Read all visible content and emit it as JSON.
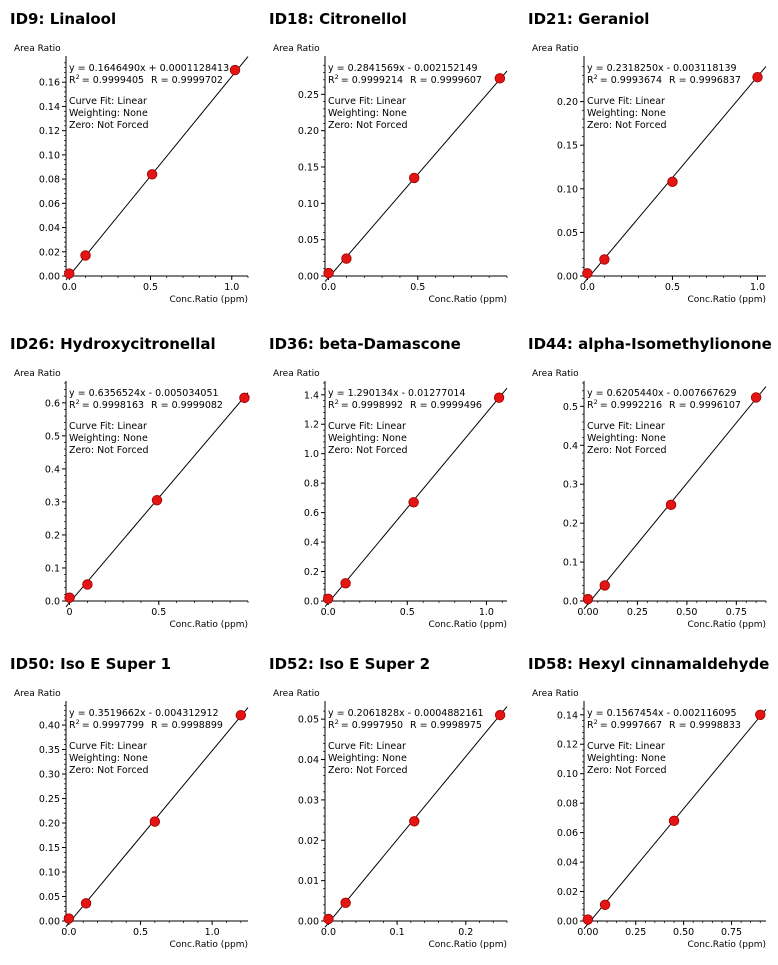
{
  "chart_data": [
    {
      "type": "scatter",
      "title": "ID9: Linalool",
      "ylabel": "Area Ratio",
      "xlabel": "Conc.Ratio (ppm)",
      "x_ticks": [
        "0.0",
        "0.5",
        "1.0"
      ],
      "y_ticks": [
        "0.00",
        "0.02",
        "0.04",
        "0.06",
        "0.08",
        "0.10",
        "0.12",
        "0.14",
        "0.16"
      ],
      "xlim": [
        -0.02,
        1.1
      ],
      "ylim": [
        0.0,
        0.18
      ],
      "equation": "y = 0.1646490x + 0.0001128413",
      "r2": "= 0.9999405",
      "r": "R = 0.9999702",
      "slope": 0.164649,
      "intercept": 0.0001128413,
      "fit_x": [
        -0.02,
        1.1
      ],
      "info": [
        "Curve Fit: Linear",
        "Weighting: None",
        "Zero: Not Forced"
      ],
      "points": [
        {
          "x": 0.0,
          "y": 0.002
        },
        {
          "x": 0.1,
          "y": 0.017
        },
        {
          "x": 0.51,
          "y": 0.084
        },
        {
          "x": 1.02,
          "y": 0.17
        }
      ]
    },
    {
      "type": "scatter",
      "title": "ID18: Citronellol",
      "ylabel": "Area Ratio",
      "xlabel": "Conc.Ratio (ppm)",
      "x_ticks": [
        "0.0",
        "0.5"
      ],
      "y_ticks": [
        "0.00",
        "0.05",
        "0.10",
        "0.15",
        "0.20",
        "0.25"
      ],
      "xlim": [
        -0.02,
        1.0
      ],
      "ylim": [
        0.0,
        0.3
      ],
      "equation": "y = 0.2841569x - 0.002152149",
      "r2": "= 0.9999214",
      "r": "R = 0.9999607",
      "slope": 0.2841569,
      "intercept": -0.002152149,
      "fit_x": [
        -0.02,
        1.0
      ],
      "info": [
        "Curve Fit: Linear",
        "Weighting: None",
        "Zero: Not Forced"
      ],
      "points": [
        {
          "x": 0.0,
          "y": 0.004
        },
        {
          "x": 0.1,
          "y": 0.024
        },
        {
          "x": 0.48,
          "y": 0.135
        },
        {
          "x": 0.96,
          "y": 0.272
        }
      ]
    },
    {
      "type": "scatter",
      "title": "ID21: Geraniol",
      "ylabel": "Area Ratio",
      "xlabel": "Conc.Ratio (ppm)",
      "x_ticks": [
        "0.0",
        "0.5",
        "1.0"
      ],
      "y_ticks": [
        "0.00",
        "0.05",
        "0.10",
        "0.15",
        "0.20"
      ],
      "xlim": [
        -0.02,
        1.05
      ],
      "ylim": [
        0.0,
        0.25
      ],
      "equation": "y = 0.2318250x - 0.003118139",
      "r2": "= 0.9993674",
      "r": "R = 0.9996837",
      "slope": 0.231825,
      "intercept": -0.003118139,
      "fit_x": [
        -0.02,
        1.05
      ],
      "info": [
        "Curve Fit: Linear",
        "Weighting: None",
        "Zero: Not Forced"
      ],
      "points": [
        {
          "x": 0.0,
          "y": 0.003
        },
        {
          "x": 0.1,
          "y": 0.019
        },
        {
          "x": 0.5,
          "y": 0.108
        },
        {
          "x": 1.0,
          "y": 0.228
        }
      ]
    },
    {
      "type": "scatter",
      "title": "ID26: Hydroxycitronellal",
      "ylabel": "Area Ratio",
      "xlabel": "Conc.Ratio (ppm)",
      "x_ticks": [
        "0",
        "0.5"
      ],
      "y_ticks": [
        "0.0",
        "0.1",
        "0.2",
        "0.3",
        "0.4",
        "0.5",
        "0.6"
      ],
      "xlim": [
        -0.02,
        1.0
      ],
      "ylim": [
        0.0,
        0.66
      ],
      "equation": "y = 0.6356524x - 0.005034051",
      "r2": "= 0.9998163",
      "r": "R = 0.9999082",
      "slope": 0.6356524,
      "intercept": -0.005034051,
      "fit_x": [
        -0.02,
        1.0
      ],
      "info": [
        "Curve Fit: Linear",
        "Weighting: None",
        "Zero: Not Forced"
      ],
      "points": [
        {
          "x": 0.0,
          "y": 0.01
        },
        {
          "x": 0.1,
          "y": 0.05
        },
        {
          "x": 0.49,
          "y": 0.305
        },
        {
          "x": 0.98,
          "y": 0.615
        }
      ]
    },
    {
      "type": "scatter",
      "title": "ID36: beta-Damascone",
      "ylabel": "Area Ratio",
      "xlabel": "Conc.Ratio (ppm)",
      "x_ticks": [
        "0.0",
        "0.5",
        "1.0"
      ],
      "y_ticks": [
        "0.0",
        "0.2",
        "0.4",
        "0.6",
        "0.8",
        "1.0",
        "1.2",
        "1.4"
      ],
      "xlim": [
        -0.02,
        1.13
      ],
      "ylim": [
        0.0,
        1.48
      ],
      "equation": "y = 1.290134x - 0.01277014",
      "r2": "= 0.9998992",
      "r": "R = 0.9999496",
      "slope": 1.290134,
      "intercept": -0.01277014,
      "fit_x": [
        -0.02,
        1.13
      ],
      "info": [
        "Curve Fit: Linear",
        "Weighting: None",
        "Zero: Not Forced"
      ],
      "points": [
        {
          "x": 0.0,
          "y": 0.015
        },
        {
          "x": 0.11,
          "y": 0.12
        },
        {
          "x": 0.54,
          "y": 0.67
        },
        {
          "x": 1.08,
          "y": 1.38
        }
      ]
    },
    {
      "type": "scatter",
      "title": "ID44: alpha-Isomethylionone",
      "ylabel": "Area Ratio",
      "xlabel": "Conc.Ratio (ppm)",
      "x_ticks": [
        "0.00",
        "0.25",
        "0.50",
        "0.75"
      ],
      "y_ticks": [
        "0.0",
        "0.1",
        "0.2",
        "0.3",
        "0.4",
        "0.5"
      ],
      "xlim": [
        -0.02,
        0.9
      ],
      "ylim": [
        0.0,
        0.56
      ],
      "equation": "y = 0.6205440x - 0.007667629",
      "r2": "= 0.9992216",
      "r": "R = 0.9996107",
      "slope": 0.620544,
      "intercept": -0.007667629,
      "fit_x": [
        -0.02,
        0.9
      ],
      "info": [
        "Curve Fit: Linear",
        "Weighting: None",
        "Zero: Not Forced"
      ],
      "points": [
        {
          "x": 0.0,
          "y": 0.005
        },
        {
          "x": 0.085,
          "y": 0.04
        },
        {
          "x": 0.42,
          "y": 0.247
        },
        {
          "x": 0.85,
          "y": 0.523
        }
      ]
    },
    {
      "type": "scatter",
      "title": "ID50: Iso E Super 1",
      "ylabel": "Area Ratio",
      "xlabel": "Conc.Ratio (ppm)",
      "x_ticks": [
        "0.0",
        "0.5",
        "1.0"
      ],
      "y_ticks": [
        "0.00",
        "0.05",
        "0.10",
        "0.15",
        "0.20",
        "0.25",
        "0.30",
        "0.35",
        "0.40"
      ],
      "xlim": [
        -0.02,
        1.25
      ],
      "ylim": [
        0.0,
        0.445
      ],
      "equation": "y = 0.3519662x - 0.004312912",
      "r2": "= 0.9997799",
      "r": "R = 0.9998899",
      "slope": 0.3519662,
      "intercept": -0.004312912,
      "fit_x": [
        -0.02,
        1.25
      ],
      "info": [
        "Curve Fit: Linear",
        "Weighting: None",
        "Zero: Not Forced"
      ],
      "points": [
        {
          "x": 0.0,
          "y": 0.005
        },
        {
          "x": 0.12,
          "y": 0.036
        },
        {
          "x": 0.6,
          "y": 0.203
        },
        {
          "x": 1.2,
          "y": 0.42
        }
      ]
    },
    {
      "type": "scatter",
      "title": "ID52: Iso E Super 2",
      "ylabel": "Area Ratio",
      "xlabel": "Conc.Ratio (ppm)",
      "x_ticks": [
        "0.0",
        "0.1",
        "0.2"
      ],
      "y_ticks": [
        "0.00",
        "0.01",
        "0.02",
        "0.03",
        "0.04",
        "0.05"
      ],
      "xlim": [
        -0.005,
        0.26
      ],
      "ylim": [
        0.0,
        0.054
      ],
      "equation": "y = 0.2061828x - 0.0004882161",
      "r2": "= 0.9997950",
      "r": "R = 0.9998975",
      "slope": 0.2061828,
      "intercept": -0.0004882161,
      "fit_x": [
        -0.005,
        0.26
      ],
      "info": [
        "Curve Fit: Linear",
        "Weighting: None",
        "Zero: Not Forced"
      ],
      "points": [
        {
          "x": 0.0,
          "y": 0.0005
        },
        {
          "x": 0.025,
          "y": 0.0045
        },
        {
          "x": 0.125,
          "y": 0.0247
        },
        {
          "x": 0.25,
          "y": 0.051
        }
      ]
    },
    {
      "type": "scatter",
      "title": "ID58: Hexyl cinnamaldehyde",
      "ylabel": "Area Ratio",
      "xlabel": "Conc.Ratio (ppm)",
      "x_ticks": [
        "0.00",
        "0.25",
        "0.50",
        "0.75"
      ],
      "y_ticks": [
        "0.00",
        "0.02",
        "0.04",
        "0.06",
        "0.08",
        "0.10",
        "0.12",
        "0.14"
      ],
      "xlim": [
        -0.02,
        0.93
      ],
      "ylim": [
        0.0,
        0.148
      ],
      "equation": "y = 0.1567454x - 0.002116095",
      "r2": "= 0.9997667",
      "r": "R = 0.9998833",
      "slope": 0.1567454,
      "intercept": -0.002116095,
      "fit_x": [
        -0.02,
        0.93
      ],
      "info": [
        "Curve Fit: Linear",
        "Weighting: None",
        "Zero: Not Forced"
      ],
      "points": [
        {
          "x": 0.0,
          "y": 0.001
        },
        {
          "x": 0.09,
          "y": 0.011
        },
        {
          "x": 0.45,
          "y": 0.068
        },
        {
          "x": 0.9,
          "y": 0.14
        }
      ]
    }
  ]
}
